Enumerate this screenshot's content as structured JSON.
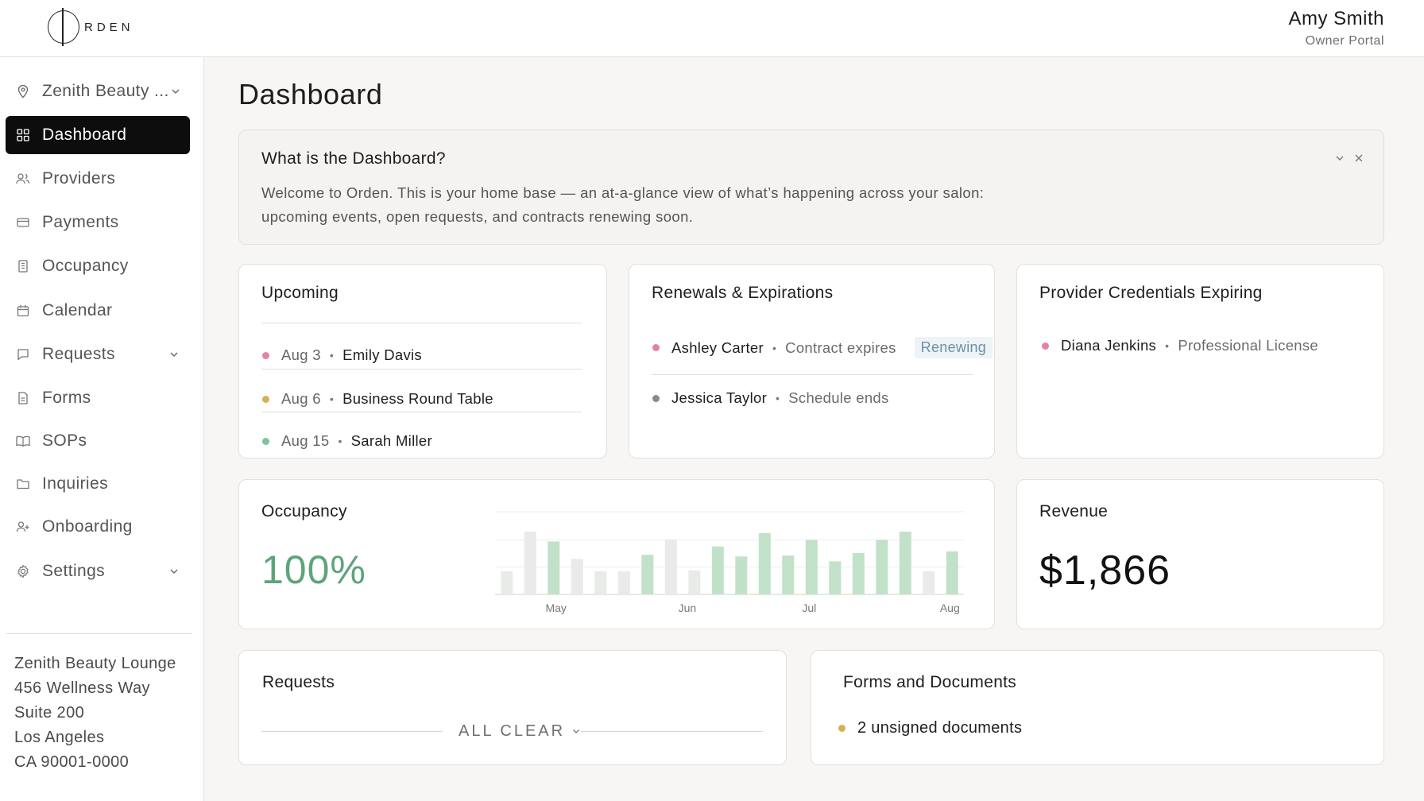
{
  "header": {
    "logo_text": "RDEN",
    "user_name": "Amy Smith",
    "user_role": "Owner Portal"
  },
  "sidebar": {
    "location": "Zenith Beauty ...",
    "items": [
      {
        "label": "Dashboard",
        "icon": "grid-icon",
        "active": true
      },
      {
        "label": "Providers",
        "icon": "users-icon"
      },
      {
        "label": "Payments",
        "icon": "credit-card-icon"
      },
      {
        "label": "Occupancy",
        "icon": "building-icon"
      },
      {
        "label": "Calendar",
        "icon": "calendar-icon"
      },
      {
        "label": "Requests",
        "icon": "message-icon",
        "expandable": true
      },
      {
        "label": "Forms",
        "icon": "file-icon"
      },
      {
        "label": "SOPs",
        "icon": "book-icon"
      },
      {
        "label": "Inquiries",
        "icon": "folder-icon"
      },
      {
        "label": "Onboarding",
        "icon": "user-plus-icon"
      },
      {
        "label": "Settings",
        "icon": "gear-icon",
        "expandable": true
      }
    ],
    "address": [
      "Zenith Beauty Lounge",
      "456 Wellness Way",
      "Suite 200",
      "Los Angeles",
      "CA 90001-0000"
    ]
  },
  "main": {
    "title": "Dashboard",
    "info": {
      "title": "What is the Dashboard?",
      "line1": "Welcome to Orden. This is your home base — an at-a-glance view of what’s happening across your salon:",
      "line2": "upcoming events, open requests, and contracts renewing soon."
    },
    "upcoming": {
      "title": "Upcoming",
      "items": [
        {
          "date": "Aug 3",
          "name": "Emily Davis",
          "color": "#e2849d"
        },
        {
          "date": "Aug 6",
          "name": "Business Round Table",
          "color": "#d8b052"
        },
        {
          "date": "Aug 15",
          "name": "Sarah Miller",
          "color": "#7cc39a"
        }
      ]
    },
    "renewals": {
      "title": "Renewals & Expirations",
      "items": [
        {
          "name": "Ashley Carter",
          "detail": "Contract expires",
          "badge": "Renewing",
          "color": "#e2849d"
        },
        {
          "name": "Jessica Taylor",
          "detail": "Schedule ends",
          "color": "#8a8a8a"
        }
      ]
    },
    "credentials": {
      "title": "Provider Credentials Expiring",
      "items": [
        {
          "name": "Diana Jenkins",
          "detail": "Professional License",
          "color": "#e2849d"
        }
      ]
    },
    "occupancy": {
      "title": "Occupancy",
      "value": "100%"
    },
    "revenue": {
      "title": "Revenue",
      "value": "$1,866"
    },
    "requests": {
      "title": "Requests",
      "status": "ALL CLEAR"
    },
    "forms": {
      "title": "Forms and Documents",
      "item": "2 unsigned documents",
      "color": "#d8b052"
    }
  },
  "chart_data": {
    "type": "bar",
    "x_ticks": [
      "May",
      "Jun",
      "Jul",
      "Aug"
    ],
    "ylim": [
      0,
      1
    ],
    "values": [
      0.28,
      0.76,
      0.64,
      0.43,
      0.28,
      0.28,
      0.48,
      0.66,
      0.29,
      0.58,
      0.46,
      0.74,
      0.47,
      0.66,
      0.4,
      0.5,
      0.66,
      0.76,
      0.28,
      0.52
    ],
    "highlighted": [
      false,
      false,
      true,
      false,
      false,
      false,
      true,
      false,
      false,
      true,
      true,
      true,
      true,
      true,
      true,
      true,
      true,
      true,
      false,
      true
    ],
    "colors": {
      "highlight": "#c1e2c9",
      "muted": "#e8ebe7"
    },
    "grid": true
  }
}
